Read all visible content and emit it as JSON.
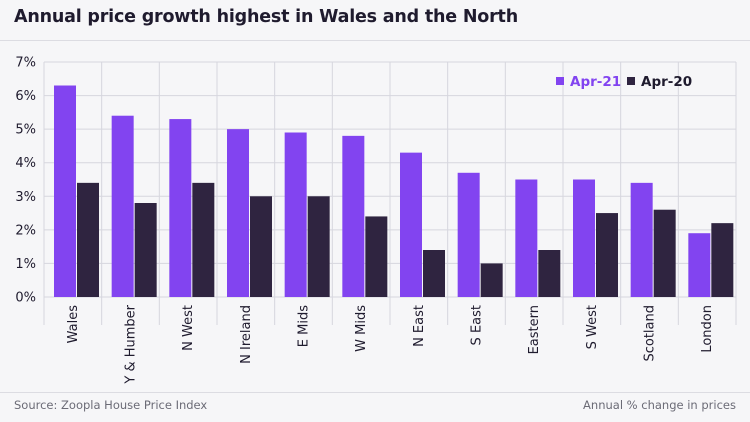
{
  "title": "Annual price growth highest in Wales and the North",
  "footer": {
    "source": "Source: Zoopla House Price Index",
    "note": "Annual % change in prices"
  },
  "colors": {
    "series_a": "#8244f0",
    "series_b": "#2f2440",
    "grid": "#d6d6de",
    "text": "#1f1b2e",
    "background": "#f6f6f8"
  },
  "chart_data": {
    "type": "bar",
    "title": "Annual price growth highest in Wales and the North",
    "xlabel": "",
    "ylabel": "",
    "ylim": [
      0,
      7
    ],
    "yticks": [
      "0%",
      "1%",
      "2%",
      "3%",
      "4%",
      "5%",
      "6%",
      "7%"
    ],
    "grid": true,
    "legend_position": "top-right",
    "categories": [
      "Wales",
      "Y & Humber",
      "N West",
      "N Ireland",
      "E Mids",
      "W Mids",
      "N East",
      "S East",
      "Eastern",
      "S West",
      "Scotland",
      "London"
    ],
    "series": [
      {
        "name": "Apr-21",
        "color": "#8244f0",
        "values": [
          6.3,
          5.4,
          5.3,
          5.0,
          4.9,
          4.8,
          4.3,
          3.7,
          3.5,
          3.5,
          3.4,
          1.9
        ]
      },
      {
        "name": "Apr-20",
        "color": "#2f2440",
        "values": [
          3.4,
          2.8,
          3.4,
          3.0,
          3.0,
          2.4,
          1.4,
          1.0,
          1.4,
          2.5,
          2.6,
          2.2
        ]
      }
    ]
  }
}
